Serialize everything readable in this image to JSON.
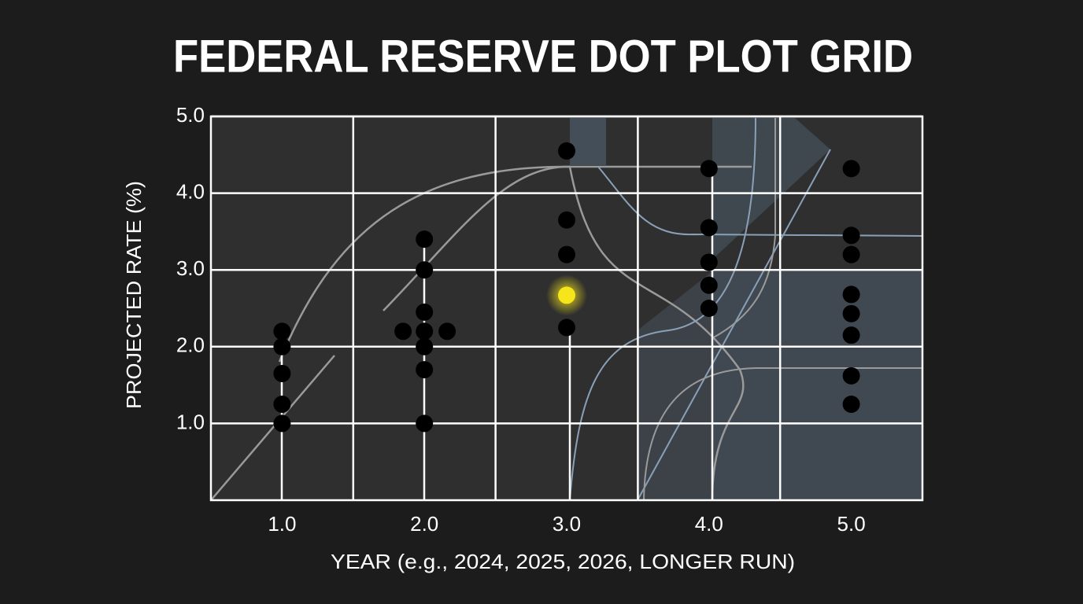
{
  "chart_data": {
    "type": "scatter",
    "title": "FEDERAL RESERVE DOT PLOT GRID",
    "x_label": "YEAR (e.g., 2024, 2025, 2026, LONGER RUN)",
    "y_label": "PROJECTED RATE (%)",
    "xlim": [
      0.5,
      5.5
    ],
    "ylim": [
      0,
      5
    ],
    "xticks": [
      {
        "value": 1,
        "label": "1.0"
      },
      {
        "value": 2,
        "label": "2.0"
      },
      {
        "value": 3,
        "label": "3.0"
      },
      {
        "value": 4,
        "label": "4.0"
      },
      {
        "value": 5,
        "label": "5.0"
      }
    ],
    "yticks": [
      {
        "value": 1,
        "label": "1.0"
      },
      {
        "value": 2,
        "label": "2.0"
      },
      {
        "value": 3,
        "label": "3.0"
      },
      {
        "value": 4,
        "label": "4.0"
      },
      {
        "value": 5,
        "label": "5.0"
      }
    ],
    "x_grid": [
      1.5,
      2.5,
      3.5,
      4.5
    ],
    "grid": true,
    "series": [
      {
        "color": "#000000",
        "x": [
          1,
          1,
          1,
          1,
          1,
          2,
          2,
          2,
          1.85,
          2,
          2.16,
          2,
          2,
          2,
          3,
          3,
          3,
          3,
          4,
          4,
          4,
          4,
          4,
          5,
          5,
          5,
          5,
          5,
          5,
          5,
          5
        ],
        "values": [
          2.2,
          2.0,
          1.65,
          1.25,
          1.0,
          3.4,
          3.0,
          2.45,
          2.2,
          2.2,
          2.2,
          2.0,
          1.7,
          1.0,
          4.55,
          3.65,
          3.2,
          2.25,
          4.32,
          3.55,
          3.1,
          2.8,
          2.5,
          4.32,
          3.45,
          3.2,
          2.68,
          2.43,
          2.15,
          1.62,
          1.25
        ]
      },
      {
        "color": "#f5e51a",
        "x": [
          3
        ],
        "values": [
          2.67
        ]
      }
    ]
  }
}
